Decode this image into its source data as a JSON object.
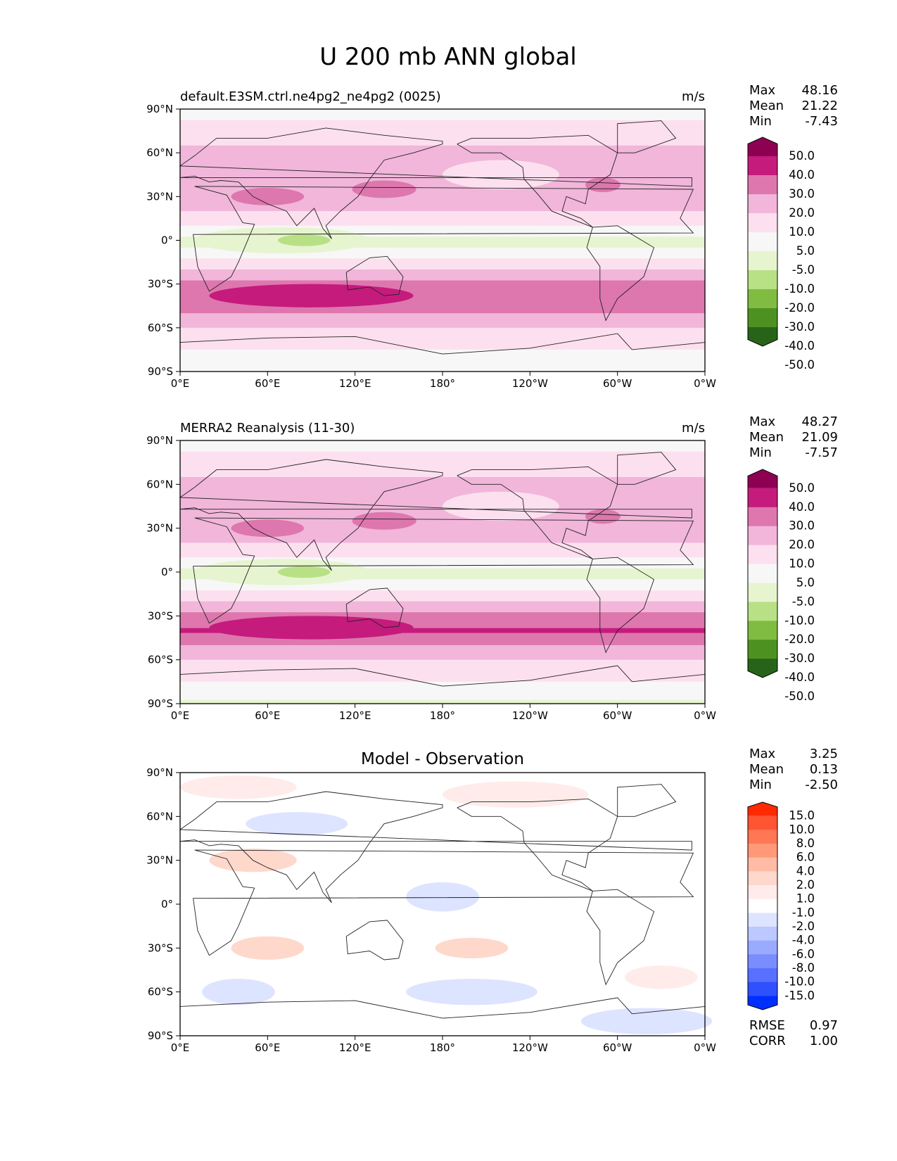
{
  "figure": {
    "title": "U 200 mb ANN global"
  },
  "axes": {
    "xticks": [
      "0°E",
      "60°E",
      "120°E",
      "180°",
      "120°W",
      "60°W",
      "0°W"
    ],
    "yticks": [
      "90°N",
      "60°N",
      "30°N",
      "0°",
      "30°S",
      "60°S",
      "90°S"
    ]
  },
  "chart_data": [
    {
      "type": "heatmap",
      "title": "default.E3SM.ctrl.ne4pg2_ne4pg2 (0025)",
      "units": "m/s",
      "stats": {
        "Max": "48.16",
        "Mean": "21.22",
        "Min": "-7.43"
      },
      "colorbar": {
        "levels": [
          "50.0",
          "40.0",
          "30.0",
          "20.0",
          "10.0",
          "5.0",
          "-5.0",
          "-10.0",
          "-20.0",
          "-30.0",
          "-40.0",
          "-50.0"
        ],
        "colors": [
          "#8e0152",
          "#c51b7d",
          "#de77ae",
          "#f1b6da",
          "#fde0ef",
          "#f7f7f7",
          "#e6f5d0",
          "#b8e186",
          "#7fbc41",
          "#4d9221",
          "#276419"
        ]
      },
      "field_bands": [
        {
          "lat": 90,
          "v": 5
        },
        {
          "lat": 75,
          "v": 15
        },
        {
          "lat": 60,
          "v": 22
        },
        {
          "lat": 45,
          "v": 25
        },
        {
          "lat": 30,
          "v": 28
        },
        {
          "lat": 15,
          "v": 15
        },
        {
          "lat": 0,
          "v": 2
        },
        {
          "lat": -15,
          "v": 12
        },
        {
          "lat": -30,
          "v": 32
        },
        {
          "lat": -40,
          "v": 40
        },
        {
          "lat": -50,
          "v": 30
        },
        {
          "lat": -60,
          "v": 20
        },
        {
          "lat": -75,
          "v": 10
        },
        {
          "lat": -90,
          "v": 5
        }
      ],
      "xlim": [
        0,
        360
      ],
      "ylim": [
        -90,
        90
      ]
    },
    {
      "type": "heatmap",
      "title": "MERRA2 Reanalysis (11-30)",
      "units": "m/s",
      "stats": {
        "Max": "48.27",
        "Mean": "21.09",
        "Min": "-7.57"
      },
      "colorbar": {
        "levels": [
          "50.0",
          "40.0",
          "30.0",
          "20.0",
          "10.0",
          "5.0",
          "-5.0",
          "-10.0",
          "-20.0",
          "-30.0",
          "-40.0",
          "-50.0"
        ],
        "colors": [
          "#8e0152",
          "#c51b7d",
          "#de77ae",
          "#f1b6da",
          "#fde0ef",
          "#f7f7f7",
          "#e6f5d0",
          "#b8e186",
          "#7fbc41",
          "#4d9221",
          "#276419"
        ]
      },
      "field_bands": [
        {
          "lat": 90,
          "v": 5
        },
        {
          "lat": 75,
          "v": 14
        },
        {
          "lat": 60,
          "v": 22
        },
        {
          "lat": 45,
          "v": 25
        },
        {
          "lat": 30,
          "v": 28
        },
        {
          "lat": 15,
          "v": 15
        },
        {
          "lat": 0,
          "v": 2
        },
        {
          "lat": -15,
          "v": 12
        },
        {
          "lat": -30,
          "v": 32
        },
        {
          "lat": -40,
          "v": 41
        },
        {
          "lat": -50,
          "v": 30
        },
        {
          "lat": -60,
          "v": 20
        },
        {
          "lat": -75,
          "v": 10
        },
        {
          "lat": -90,
          "v": 4
        }
      ],
      "xlim": [
        0,
        360
      ],
      "ylim": [
        -90,
        90
      ]
    },
    {
      "type": "heatmap",
      "title": "Model - Observation",
      "units": "",
      "stats": {
        "Max": "3.25",
        "Mean": "0.13",
        "Min": "-2.50"
      },
      "metrics": {
        "RMSE": "0.97",
        "CORR": "1.00"
      },
      "colorbar": {
        "levels": [
          "15.0",
          "10.0",
          "8.0",
          "6.0",
          "4.0",
          "2.0",
          "1.0",
          "-1.0",
          "-2.0",
          "-4.0",
          "-6.0",
          "-8.0",
          "-10.0",
          "-15.0"
        ],
        "colors": [
          "#ff2a00",
          "#ff5533",
          "#ff7755",
          "#ff9977",
          "#ffbba5",
          "#ffd8cc",
          "#ffecea",
          "#ffffff",
          "#dde4ff",
          "#bcc8ff",
          "#9aaaff",
          "#7a8dff",
          "#5870ff",
          "#3050ff",
          "#0030ff"
        ]
      },
      "field_bands": [
        {
          "lat": 90,
          "v": 0.5
        },
        {
          "lat": 0,
          "v": 0
        },
        {
          "lat": -90,
          "v": -0.5
        }
      ],
      "xlim": [
        0,
        360
      ],
      "ylim": [
        -90,
        90
      ]
    }
  ]
}
